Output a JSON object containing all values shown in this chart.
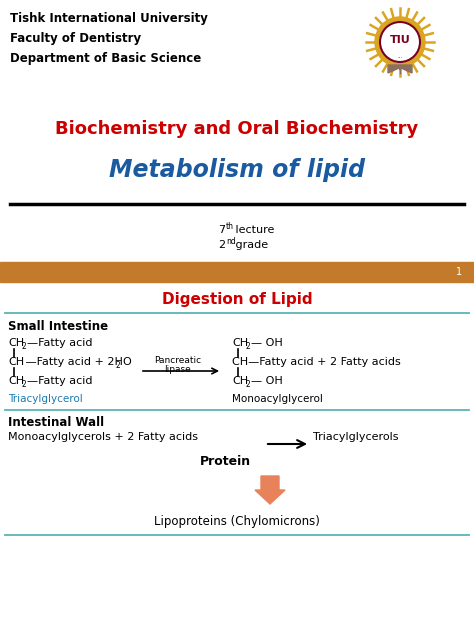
{
  "bg_color": "#ffffff",
  "header_lines": [
    "Tishk International University",
    "Faculty of Dentistry",
    "Department of Basic Science"
  ],
  "title1": "Biochemistry and Oral Biochemistry",
  "title2": "Metabolism of lipid",
  "banner_color": "#C47A2B",
  "banner_number": "1",
  "section_title": "Digestion of Lipid",
  "section_title_color": "#cc0000",
  "divider_color": "#5ab4b4",
  "small_intestine_label": "Small Intestine",
  "left_label": "Triacylglycerol",
  "enzyme_line1": "Pancreatic",
  "enzyme_line2": "lipase",
  "right_label": "Monoacylglycerol",
  "intestinal_wall_label": "Intestinal Wall",
  "protein_label": "Protein",
  "lipoprotein_label": "Lipoproteins (Chylomicrons)",
  "arrow_color": "#E8825A",
  "title1_color": "#cc0000",
  "title2_color": "#1a5aa0"
}
